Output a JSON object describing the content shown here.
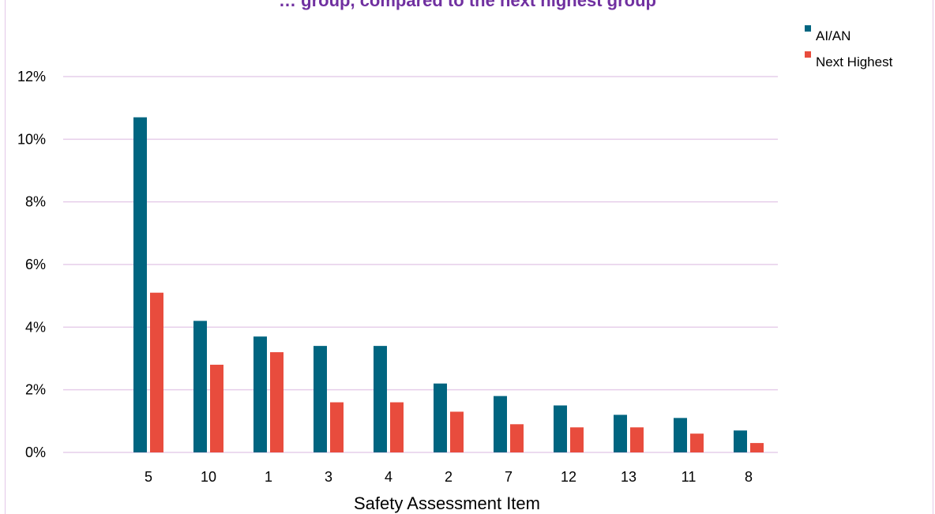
{
  "chart_data": {
    "type": "bar",
    "title": "… group, compared to the next highest group",
    "xlabel": "Safety Assessment Item",
    "ylabel": "",
    "categories": [
      "5",
      "10",
      "1",
      "3",
      "4",
      "2",
      "7",
      "12",
      "13",
      "11",
      "8"
    ],
    "series": [
      {
        "name": "AI/AN",
        "color": "#006580",
        "values": [
          10.7,
          4.2,
          3.7,
          3.4,
          3.4,
          2.2,
          1.8,
          1.5,
          1.2,
          1.1,
          0.7
        ]
      },
      {
        "name": "Next Highest",
        "color": "#e84c3d",
        "values": [
          5.1,
          2.8,
          3.2,
          1.6,
          1.6,
          1.3,
          0.9,
          0.8,
          0.8,
          0.6,
          0.3
        ]
      }
    ],
    "ylim": [
      0,
      12
    ],
    "yticks": [
      "0%",
      "2%",
      "4%",
      "6%",
      "8%",
      "10%",
      "12%"
    ],
    "grid": true,
    "gridline_color": "#e6cdea",
    "legend_position": "top-right"
  }
}
